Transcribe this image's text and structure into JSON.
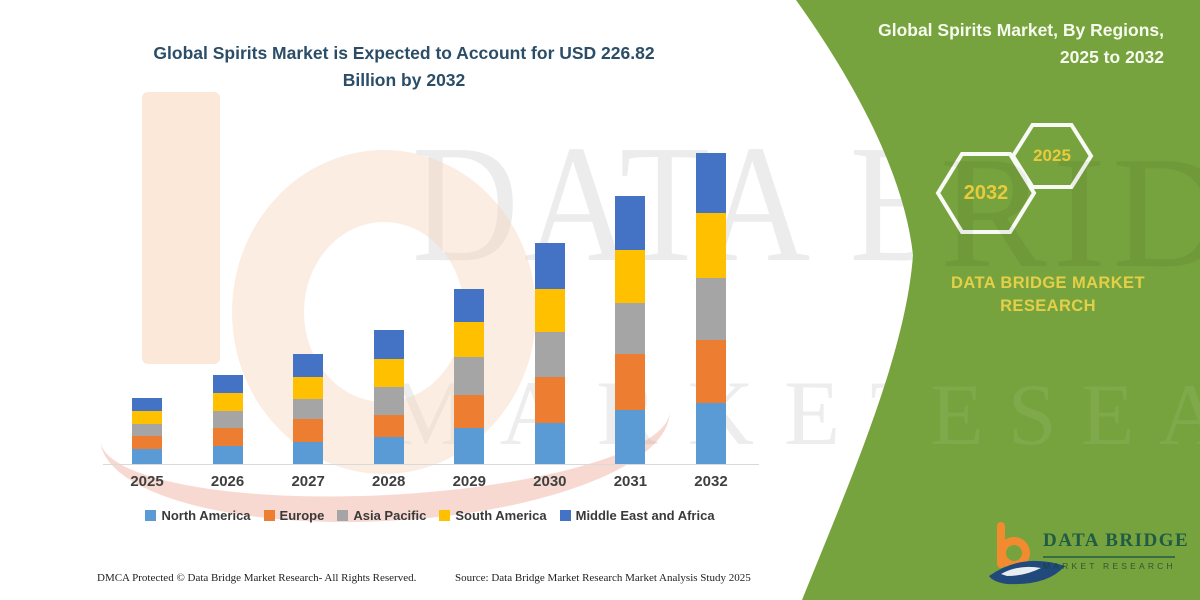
{
  "header": {
    "title_line1": "Global Spirits Market is Expected to Account for USD 226.82",
    "title_line2": "Billion by 2032"
  },
  "chart_data": {
    "type": "bar",
    "stacked": true,
    "unit": "USD Billion",
    "title": "Global Spirits Market is Expected to Account for USD 226.82 Billion by 2032",
    "xlabel": "",
    "ylabel": "",
    "ylim": [
      0,
      240
    ],
    "grid": false,
    "axis_visible": false,
    "legend_position": "bottom",
    "categories": [
      "2025",
      "2026",
      "2027",
      "2028",
      "2029",
      "2030",
      "2031",
      "2032"
    ],
    "series": [
      {
        "name": "North America",
        "color": "#5b9bd5",
        "values": [
          11.0,
          13.0,
          15.8,
          19.5,
          26.5,
          29.7,
          39.6,
          44.5
        ]
      },
      {
        "name": "Europe",
        "color": "#ed7d31",
        "values": [
          9.7,
          13.3,
          17.0,
          16.3,
          23.9,
          34.0,
          40.8,
          46.2
        ]
      },
      {
        "name": "Asia Pacific",
        "color": "#a5a5a5",
        "values": [
          8.5,
          12.6,
          14.6,
          20.2,
          27.5,
          32.8,
          37.0,
          45.0
        ]
      },
      {
        "name": "South America",
        "color": "#ffc000",
        "values": [
          9.7,
          12.9,
          16.3,
          20.6,
          26.0,
          30.9,
          38.9,
          47.4
        ]
      },
      {
        "name": "Middle East and Africa",
        "color": "#4472c4",
        "values": [
          9.1,
          12.9,
          16.8,
          21.2,
          23.6,
          33.6,
          39.4,
          43.7
        ]
      }
    ],
    "totals": [
      48.0,
      64.7,
      80.5,
      97.8,
      127.5,
      161.0,
      195.7,
      226.82
    ]
  },
  "side_panel": {
    "panel_color": "#76a33d",
    "accent_gold": "#e8cb3c",
    "title_line1": "Global Spirits Market, By Regions,",
    "title_line2": "2025 to 2032",
    "hex_large_year": "2032",
    "hex_small_year": "2025",
    "brand_line1": "DATA BRIDGE MARKET",
    "brand_line2": "RESEARCH"
  },
  "logo": {
    "name_text": "DATA BRIDGE",
    "tagline": "MARKET RESEARCH"
  },
  "watermark": {
    "line1": "DATA BRIDGE",
    "line2": "MARKET RESEARCH"
  },
  "footer": {
    "left": "DMCA Protected © Data Bridge Market Research-  All Rights Reserved.",
    "source": "Source: Data Bridge Market Research  Market Analysis Study 2025"
  }
}
